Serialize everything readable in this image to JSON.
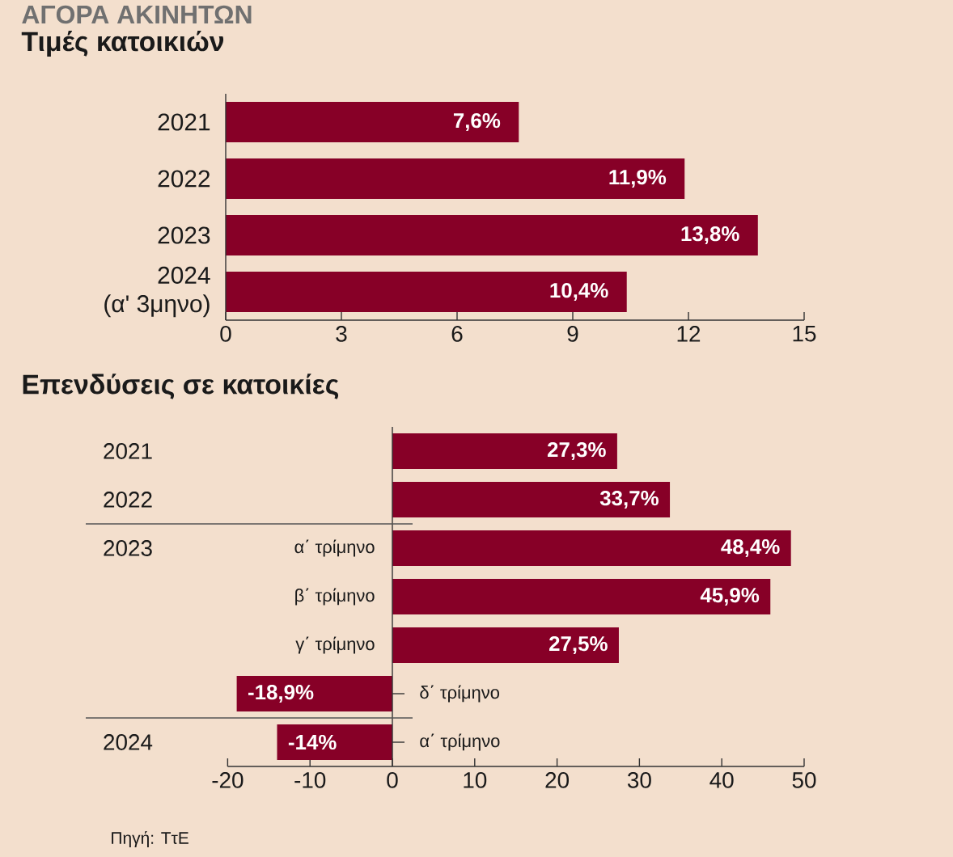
{
  "chart_data": [
    {
      "type": "bar",
      "orientation": "horizontal",
      "title": "ΑΓΟΡΑ ΑΚΙΝΗΤΩΝ",
      "subtitle": "Τιμές κατοικιών",
      "categories": [
        "2021",
        "2022",
        "2023",
        "2024 (α' 3μηνο)"
      ],
      "values": [
        7.6,
        11.9,
        13.8,
        10.4
      ],
      "value_labels": [
        "7,6%",
        "11,9%",
        "13,8%",
        "10,4%"
      ],
      "color": "#870027",
      "xlim": [
        0,
        15
      ],
      "xticks": [
        0,
        3,
        6,
        9,
        12,
        15
      ]
    },
    {
      "type": "bar",
      "orientation": "horizontal",
      "title": "Επενδύσεις σε κατοικίες",
      "categories": [
        "2021",
        "2022",
        "α΄ τρίμηνο",
        "β΄ τρίμηνο",
        "γ΄ τρίμηνο",
        "δ΄ τρίμηνο",
        "α΄ τρίμηνο"
      ],
      "values": [
        27.3,
        33.7,
        48.4,
        45.9,
        27.5,
        -18.9,
        -14
      ],
      "value_labels": [
        "27,3%",
        "33,7%",
        "48,4%",
        "45,9%",
        "27,5%",
        "-18,9%",
        "-14%"
      ],
      "color": "#870027",
      "xlim": [
        -20,
        50
      ],
      "xticks": [
        -20,
        -10,
        0,
        10,
        20,
        30,
        40,
        50
      ],
      "annotations": [
        "2023",
        "2024",
        "Πηγή: ΤτΕ"
      ]
    }
  ]
}
